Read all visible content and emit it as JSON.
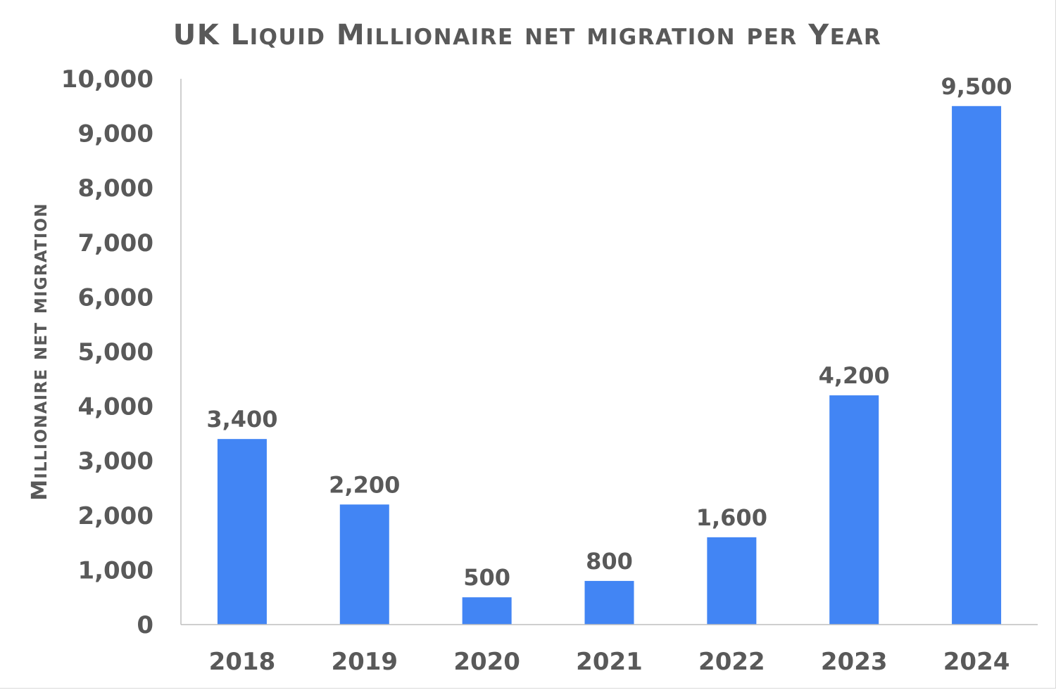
{
  "chart_data": {
    "type": "bar",
    "title": "UK Liquid Millionaire net migration per Year",
    "xlabel": "",
    "ylabel": "Millionaire net migration",
    "categories": [
      "2018",
      "2019",
      "2020",
      "2021",
      "2022",
      "2023",
      "2024"
    ],
    "values": [
      3400,
      2200,
      500,
      800,
      1600,
      4200,
      9500
    ],
    "value_labels": [
      "3,400",
      "2,200",
      "500",
      "800",
      "1,600",
      "4,200",
      "9,500"
    ],
    "ylim": [
      0,
      10000
    ],
    "yticks": [
      0,
      1000,
      2000,
      3000,
      4000,
      5000,
      6000,
      7000,
      8000,
      9000,
      10000
    ],
    "ytick_labels": [
      "0",
      "1,000",
      "2,000",
      "3,000",
      "4,000",
      "5,000",
      "6,000",
      "7,000",
      "8,000",
      "9,000",
      "10,000"
    ],
    "grid": false,
    "legend": "none",
    "bar_color": "#4285f4",
    "text_color": "#595959",
    "axis_color": "#bfbfbf"
  }
}
